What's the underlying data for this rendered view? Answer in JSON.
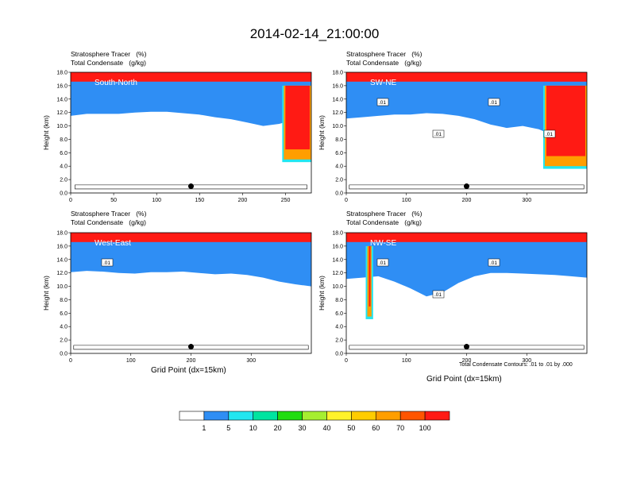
{
  "title": "2014-02-14_21:00:00",
  "field_label": "Stratosphere Tracer   (%)",
  "contour_label": "Total Condensate   (g/kg)",
  "xlabel": "Grid Point (dx=15km)",
  "ylabel": "Height (km)",
  "contour_note": "Total Condensate Contours: .01 to .01 by .000",
  "colorbar": {
    "colors": [
      "#ffffff",
      "#2f8ef4",
      "#22e6f0",
      "#00e4a0",
      "#20dc10",
      "#a6ee30",
      "#fff22a",
      "#ffcc00",
      "#ff9e00",
      "#ff5500",
      "#ff1a14"
    ],
    "labels": [
      "1",
      "5",
      "10",
      "20",
      "30",
      "40",
      "50",
      "60",
      "70",
      "100"
    ]
  },
  "chart_data": [
    {
      "type": "contour",
      "name": "South-North",
      "xlim": [
        0,
        280
      ],
      "ylim": [
        0,
        18
      ],
      "xticks": [
        0,
        50,
        100,
        150,
        200,
        250
      ],
      "yticks": [
        0,
        2,
        4,
        6,
        8,
        10,
        12,
        14,
        16,
        18
      ],
      "marker": {
        "x": 140,
        "y": 1.0
      },
      "contour_labels": [],
      "tracer_top_km": [
        15.0,
        15.3,
        15.3,
        15.3,
        15.5,
        15.6,
        15.6,
        15.4,
        15.2,
        14.8,
        14.5,
        14.0,
        13.5,
        13.8,
        14.5,
        15.0
      ],
      "intrusion": {
        "x_from": 248,
        "x_to": 280,
        "bottom_km": 5.0
      }
    },
    {
      "type": "contour",
      "name": "SW-NE",
      "xlim": [
        0,
        400
      ],
      "ylim": [
        0,
        18
      ],
      "xticks": [
        0,
        100,
        200,
        300
      ],
      "yticks": [
        0,
        2,
        4,
        6,
        8,
        10,
        12,
        14,
        16,
        18
      ],
      "marker": {
        "x": 200,
        "y": 1.0
      },
      "contour_labels": [
        ".01",
        ".01",
        ".01",
        ".01"
      ],
      "tracer_top_km": [
        14.6,
        14.8,
        15.0,
        15.2,
        15.2,
        15.4,
        15.3,
        15.0,
        14.5,
        13.7,
        13.2,
        13.5,
        13.0,
        12.0,
        11.0,
        10.5
      ],
      "intrusion": {
        "x_from": 330,
        "x_to": 400,
        "bottom_km": 4.0
      }
    },
    {
      "type": "contour",
      "name": "West-East",
      "xlim": [
        0,
        400
      ],
      "ylim": [
        0,
        18
      ],
      "xticks": [
        0,
        100,
        200,
        300
      ],
      "yticks": [
        0,
        2,
        4,
        6,
        8,
        10,
        12,
        14,
        16,
        18
      ],
      "marker": {
        "x": 200,
        "y": 1.0
      },
      "contour_labels": [
        ".01"
      ],
      "tracer_top_km": [
        15.6,
        15.8,
        15.7,
        15.5,
        15.4,
        15.6,
        15.6,
        15.7,
        15.5,
        15.3,
        15.4,
        15.2,
        14.8,
        14.2,
        13.8,
        13.5
      ],
      "intrusion": null
    },
    {
      "type": "contour",
      "name": "NW-SE",
      "xlim": [
        0,
        400
      ],
      "ylim": [
        0,
        18
      ],
      "xticks": [
        0,
        100,
        200,
        300
      ],
      "yticks": [
        0,
        2,
        4,
        6,
        8,
        10,
        12,
        14,
        16,
        18
      ],
      "marker": {
        "x": 200,
        "y": 1.0
      },
      "contour_labels": [
        ".01",
        ".01",
        ".01"
      ],
      "tracer_top_km": [
        14.6,
        14.8,
        15.0,
        14.2,
        13.2,
        12.0,
        12.6,
        14.0,
        15.0,
        15.5,
        15.5,
        15.4,
        15.3,
        15.2,
        15.0,
        14.8
      ],
      "intrusion": {
        "x_from": 35,
        "x_to": 42,
        "bottom_km": 5.5
      }
    }
  ]
}
